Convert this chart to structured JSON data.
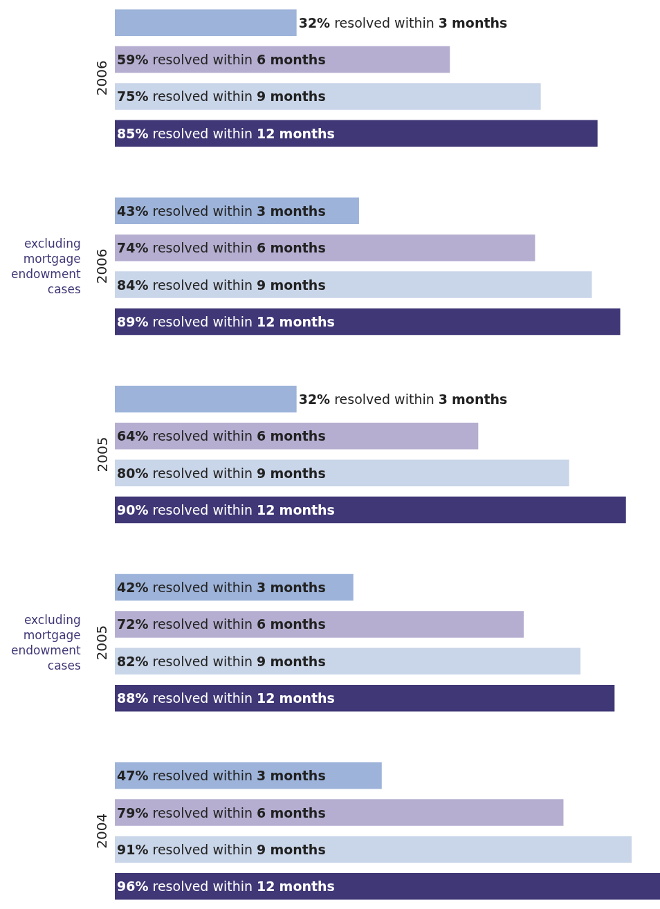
{
  "chart_data": [
    {
      "type": "bar",
      "orientation": "horizontal",
      "ylabel": "2006",
      "categories": [
        null,
        null,
        null,
        null
      ],
      "values": [
        32,
        59,
        75,
        85
      ],
      "colors": [
        "#9db3d9",
        "#b5aed0",
        "#c9d5e8",
        "#3f3776"
      ],
      "value_labels": [
        "32% resolved within 3 months",
        "59% resolved within 6 months",
        "75% resolved within 9 months",
        "85% resolved within 12 months"
      ]
    },
    {
      "type": "bar",
      "orientation": "horizontal",
      "ylabel": "2006",
      "annotations": [
        "excluding mortgage endowment cases"
      ],
      "categories": [
        null,
        null,
        null,
        null
      ],
      "values": [
        43,
        74,
        84,
        89
      ],
      "colors": [
        "#9db3d9",
        "#b5aed0",
        "#c9d5e8",
        "#3f3776"
      ],
      "value_labels": [
        "43% resolved within 3 months",
        "74% resolved within 6 months",
        "84% resolved within 9 months",
        "89% resolved within 12 months"
      ]
    },
    {
      "type": "bar",
      "orientation": "horizontal",
      "ylabel": "2005",
      "categories": [
        null,
        null,
        null,
        null
      ],
      "values": [
        32,
        64,
        80,
        90
      ],
      "colors": [
        "#9db3d9",
        "#b5aed0",
        "#c9d5e8",
        "#3f3776"
      ],
      "value_labels": [
        "32% resolved within 3 months",
        "64% resolved within 6 months",
        "80% resolved within 9 months",
        "90% resolved within 12 months"
      ]
    },
    {
      "type": "bar",
      "orientation": "horizontal",
      "ylabel": "2005",
      "annotations": [
        "excluding mortgage endowment cases"
      ],
      "categories": [
        null,
        null,
        null,
        null
      ],
      "values": [
        42,
        72,
        82,
        88
      ],
      "colors": [
        "#9db3d9",
        "#b5aed0",
        "#c9d5e8",
        "#3f3776"
      ],
      "value_labels": [
        "42% resolved within 3 months",
        "72% resolved within 6 months",
        "82% resolved within 9 months",
        "88% resolved within 12 months"
      ]
    },
    {
      "type": "bar",
      "orientation": "horizontal",
      "ylabel": "2004",
      "categories": [
        null,
        null,
        null,
        null
      ],
      "values": [
        47,
        79,
        91,
        96
      ],
      "colors": [
        "#9db3d9",
        "#b5aed0",
        "#c9d5e8",
        "#3f3776"
      ],
      "value_labels": [
        "47% resolved within 3 months",
        "79% resolved within 6 months",
        "91% resolved within 9 months",
        "96% resolved within 12 months"
      ]
    }
  ]
}
